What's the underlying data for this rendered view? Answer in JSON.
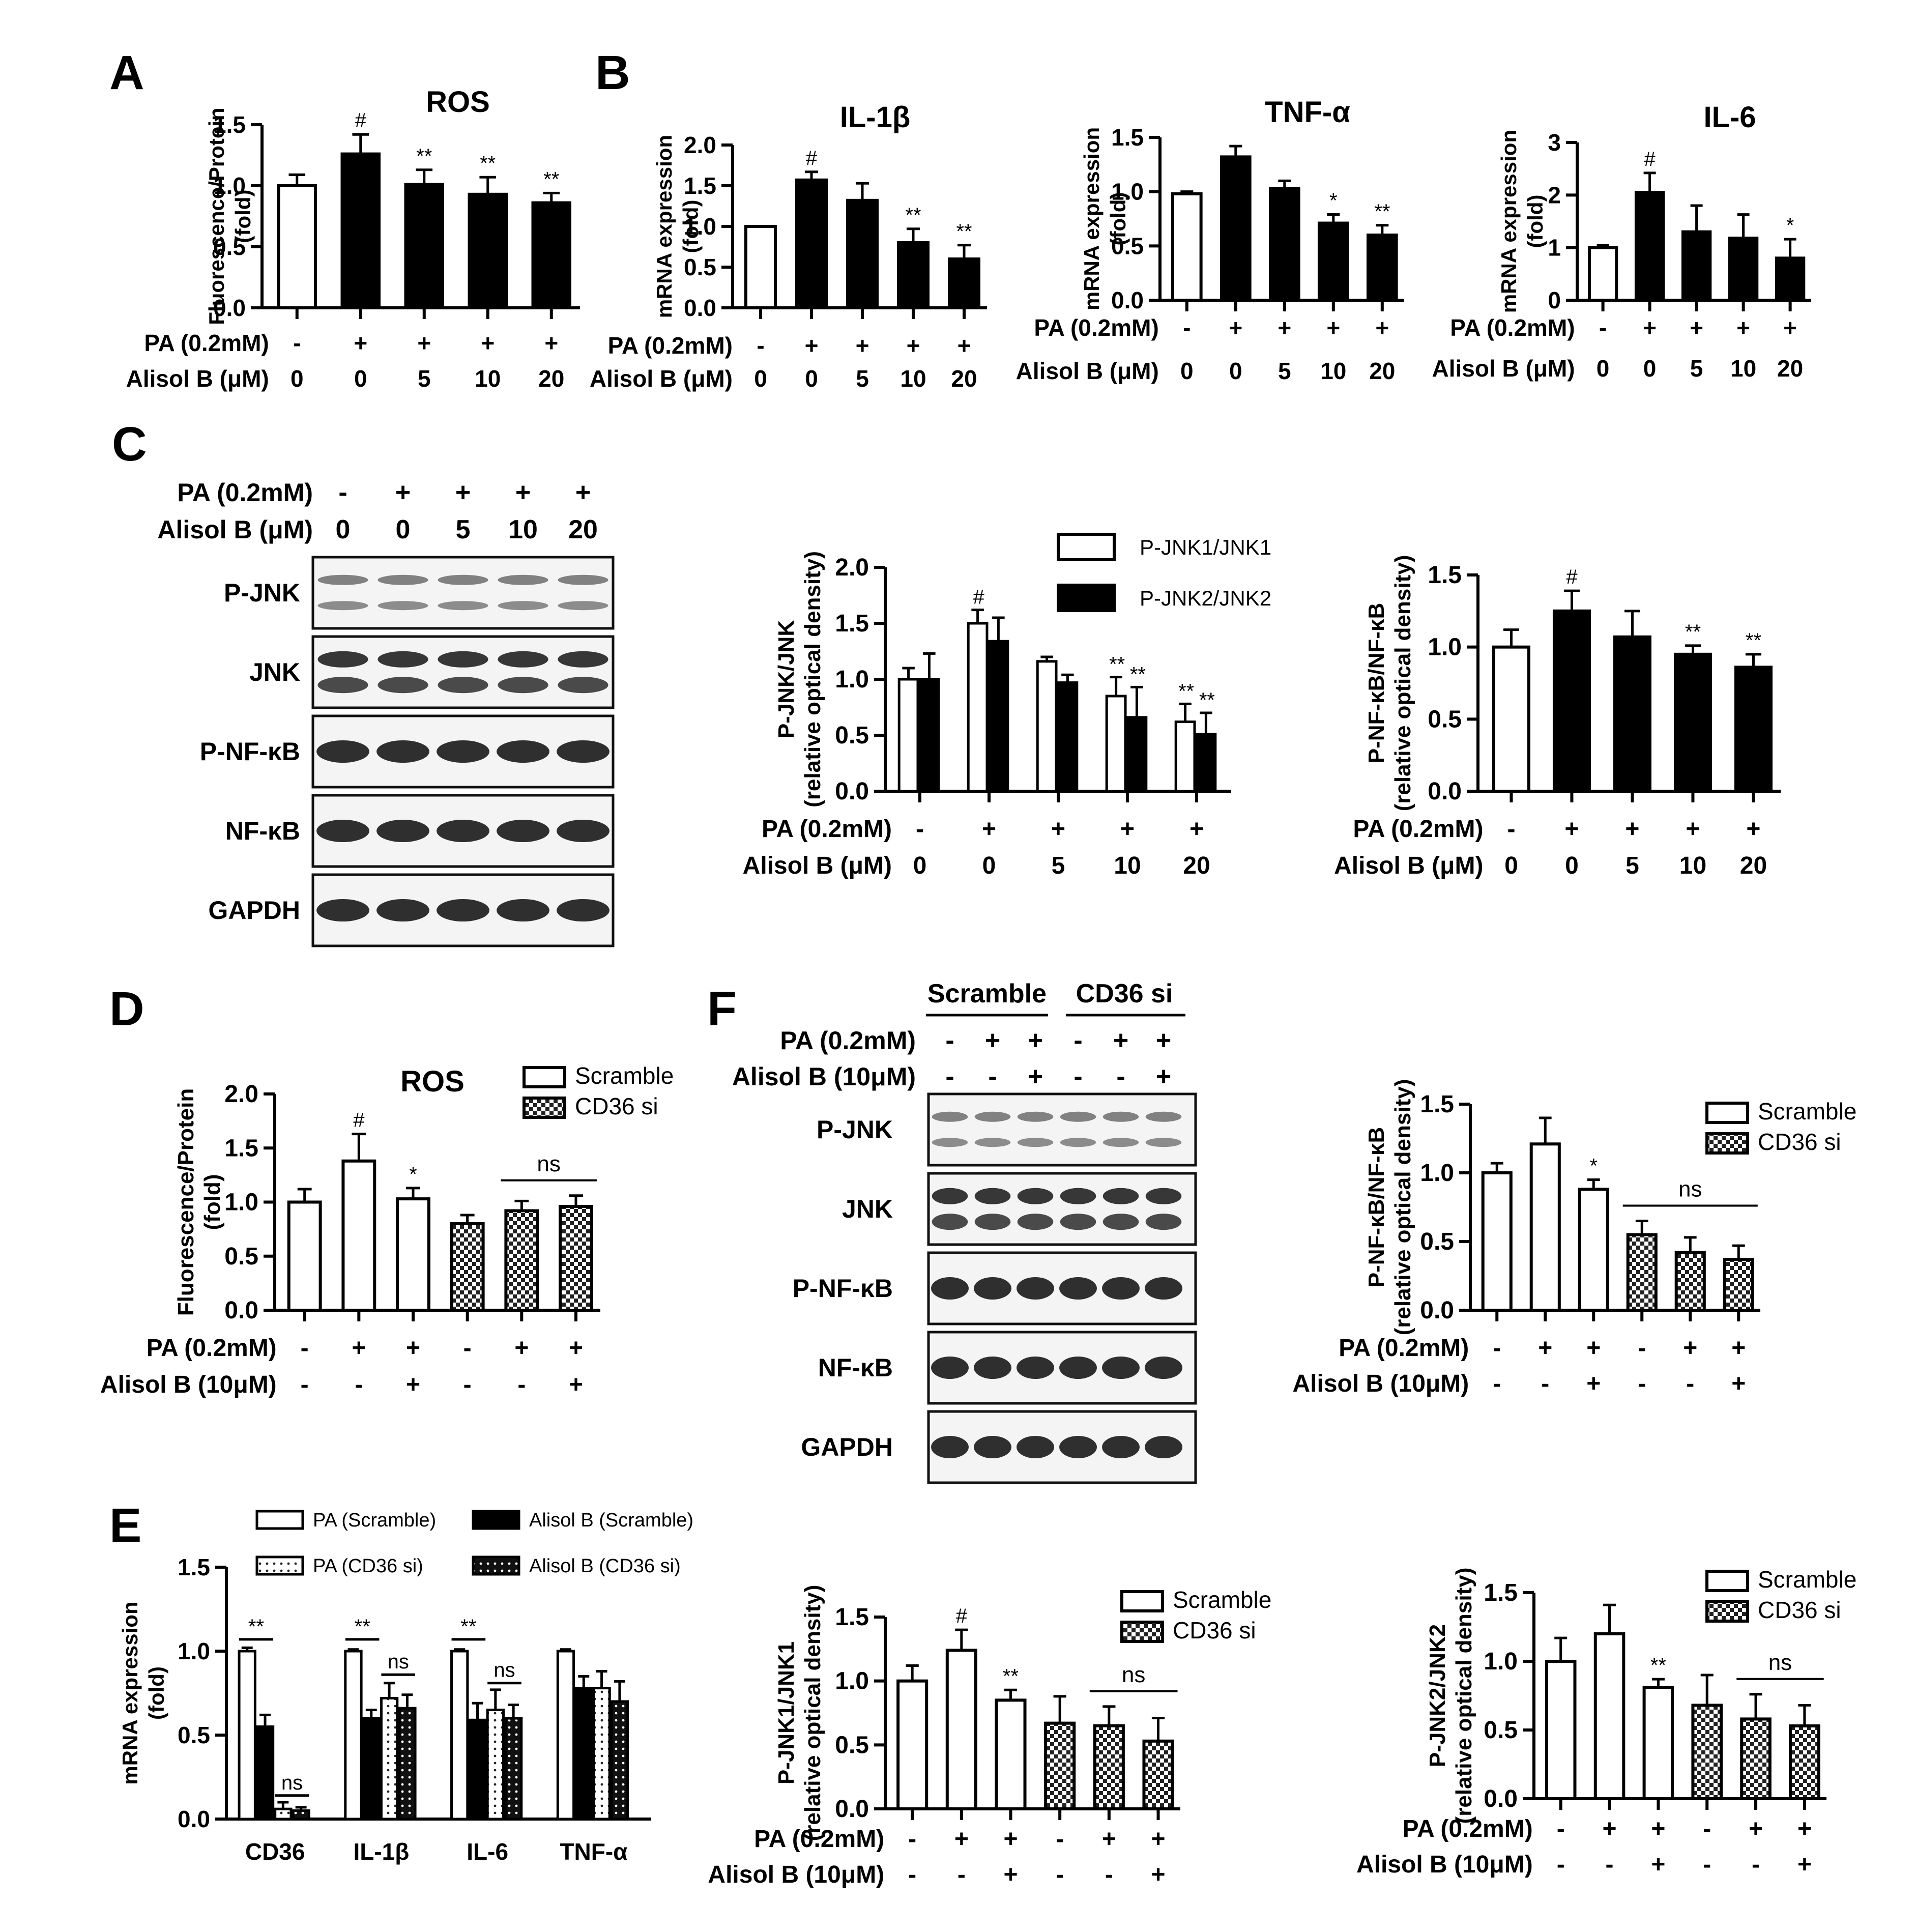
{
  "labels": {
    "pa": "PA (0.2mM)",
    "pa10": "PA (0.2mM)",
    "alisol": "Alisol B (μM)",
    "alisol10": "Alisol B (10μM)",
    "fold": "(fold)",
    "mrna": "mRNA expression",
    "fluor": "Fluorescence/Protein",
    "rod": "(relative optical density)",
    "ns": "ns"
  },
  "panel_letters": [
    "A",
    "B",
    "C",
    "D",
    "E",
    "F"
  ],
  "panelC": {
    "pa_signs": [
      "-",
      "+",
      "+",
      "+",
      "+"
    ],
    "alisol_doses": [
      "0",
      "0",
      "5",
      "10",
      "20"
    ],
    "blots": [
      "P-JNK",
      "JNK",
      "P-NF-κB",
      "NF-κB",
      "GAPDH"
    ]
  },
  "panelF": {
    "groups": [
      "Scramble",
      "CD36 si"
    ],
    "pa_signs": [
      "-",
      "+",
      "+",
      "-",
      "+",
      "+"
    ],
    "alisol_signs": [
      "-",
      "-",
      "+",
      "-",
      "-",
      "+"
    ],
    "blots": [
      "P-JNK",
      "JNK",
      "P-NF-κB",
      "NF-κB",
      "GAPDH"
    ]
  },
  "colors": {
    "filled": "#000000",
    "open": "#ffffff",
    "axis": "#000000"
  },
  "chart_data": [
    {
      "id": "A",
      "type": "bar",
      "title": "ROS",
      "ylabel": [
        "Fluorescence/Protein",
        "(fold)"
      ],
      "ylim": [
        0,
        1.5
      ],
      "yticks": [
        "0.0",
        "0.5",
        "1.0",
        "1.5"
      ],
      "row1_label": "PA (0.2mM)",
      "row1": [
        "-",
        "+",
        "+",
        "+",
        "+"
      ],
      "row2_label": "Alisol B (μM)",
      "row2": [
        "0",
        "0",
        "5",
        "10",
        "20"
      ],
      "values": [
        1.0,
        1.26,
        1.01,
        0.93,
        0.86
      ],
      "errors": [
        0.09,
        0.16,
        0.12,
        0.14,
        0.08
      ],
      "fills": [
        "open",
        "filled",
        "filled",
        "filled",
        "filled"
      ],
      "marks": [
        "",
        "#",
        "**",
        "**",
        "**"
      ]
    },
    {
      "id": "B1",
      "type": "bar",
      "title": "IL-1β",
      "ylabel": [
        "mRNA expression",
        "(fold)"
      ],
      "ylim": [
        0,
        2.0
      ],
      "yticks": [
        "0.0",
        "0.5",
        "1.0",
        "1.5",
        "2.0"
      ],
      "row1_label": "PA (0.2mM)",
      "row1": [
        "-",
        "+",
        "+",
        "+",
        "+"
      ],
      "row2_label": "Alisol B (μM)",
      "row2": [
        "0",
        "0",
        "5",
        "10",
        "20"
      ],
      "values": [
        1.0,
        1.57,
        1.32,
        0.8,
        0.6
      ],
      "errors": [
        0.0,
        0.1,
        0.21,
        0.17,
        0.17
      ],
      "fills": [
        "open",
        "filled",
        "filled",
        "filled",
        "filled"
      ],
      "marks": [
        "",
        "#",
        "",
        "**",
        "**"
      ]
    },
    {
      "id": "B2",
      "type": "bar",
      "title": "TNF-α",
      "ylabel": [
        "mRNA expression",
        "(fold)"
      ],
      "ylim": [
        0,
        1.5
      ],
      "yticks": [
        "0.0",
        "0.5",
        "1.0",
        "1.5"
      ],
      "row1_label": "PA (0.2mM)",
      "row1": [
        "-",
        "+",
        "+",
        "+",
        "+"
      ],
      "row2_label": "Alisol B (μM)",
      "row2": [
        "0",
        "0",
        "5",
        "10",
        "20"
      ],
      "values": [
        0.98,
        1.32,
        1.03,
        0.71,
        0.6
      ],
      "errors": [
        0.02,
        0.1,
        0.07,
        0.08,
        0.09
      ],
      "fills": [
        "open",
        "filled",
        "filled",
        "filled",
        "filled"
      ],
      "marks": [
        "",
        "",
        "",
        "*",
        "**"
      ]
    },
    {
      "id": "B3",
      "type": "bar",
      "title": "IL-6",
      "ylabel": [
        "mRNA expression",
        "(fold)"
      ],
      "ylim": [
        0,
        3
      ],
      "yticks": [
        "0",
        "1",
        "2",
        "3"
      ],
      "row1_label": "PA (0.2mM)",
      "row1": [
        "-",
        "+",
        "+",
        "+",
        "+"
      ],
      "row2_label": "Alisol B (μM)",
      "row2": [
        "0",
        "0",
        "5",
        "10",
        "20"
      ],
      "values": [
        1.0,
        2.05,
        1.3,
        1.18,
        0.8
      ],
      "errors": [
        0.04,
        0.37,
        0.5,
        0.45,
        0.36
      ],
      "fills": [
        "open",
        "filled",
        "filled",
        "filled",
        "filled"
      ],
      "marks": [
        "",
        "#",
        "",
        "",
        "*"
      ]
    },
    {
      "id": "C2",
      "type": "bar",
      "title": "",
      "ylabel": [
        "P-JNK/JNK",
        "(relative optical density)"
      ],
      "ylim": [
        0,
        2.0
      ],
      "yticks": [
        "0.0",
        "0.5",
        "1.0",
        "1.5",
        "2.0"
      ],
      "row1_label": "PA (0.2mM)",
      "row1": [
        "-",
        "+",
        "+",
        "+",
        "+"
      ],
      "row2_label": "Alisol B (μM)",
      "row2": [
        "0",
        "0",
        "5",
        "10",
        "20"
      ],
      "series": [
        {
          "name": "P-JNK1/JNK1",
          "fill": "open",
          "values": [
            1.0,
            1.5,
            1.16,
            0.85,
            0.62
          ],
          "errors": [
            0.1,
            0.12,
            0.04,
            0.17,
            0.16
          ],
          "marks": [
            "",
            "#",
            "",
            "**",
            "**"
          ]
        },
        {
          "name": "P-JNK2/JNK2",
          "fill": "filled",
          "values": [
            1.0,
            1.34,
            0.97,
            0.66,
            0.51
          ],
          "errors": [
            0.23,
            0.21,
            0.07,
            0.27,
            0.19
          ],
          "marks": [
            "",
            "",
            "",
            "**",
            "**"
          ]
        }
      ],
      "legend": "top-right"
    },
    {
      "id": "C3",
      "type": "bar",
      "title": "",
      "ylabel": [
        "P-NF-κB/NF-κB",
        "(relative optical density)"
      ],
      "ylim": [
        0,
        1.5
      ],
      "yticks": [
        "0.0",
        "0.5",
        "1.0",
        "1.5"
      ],
      "row1_label": "PA (0.2mM)",
      "row1": [
        "-",
        "+",
        "+",
        "+",
        "+"
      ],
      "row2_label": "Alisol B (μM)",
      "row2": [
        "0",
        "0",
        "5",
        "10",
        "20"
      ],
      "values": [
        1.0,
        1.25,
        1.07,
        0.95,
        0.86
      ],
      "errors": [
        0.12,
        0.14,
        0.18,
        0.06,
        0.09
      ],
      "fills": [
        "open",
        "filled",
        "filled",
        "filled",
        "filled"
      ],
      "marks": [
        "",
        "#",
        "",
        "**",
        "**"
      ]
    },
    {
      "id": "D",
      "type": "bar",
      "title": "ROS",
      "ylabel": [
        "Fluorescence/Protein",
        "(fold)"
      ],
      "ylim": [
        0,
        2.0
      ],
      "yticks": [
        "0.0",
        "0.5",
        "1.0",
        "1.5",
        "2.0"
      ],
      "row1_label": "PA (0.2mM)",
      "row1": [
        "-",
        "+",
        "+",
        "-",
        "+",
        "+"
      ],
      "row2_label": "Alisol B (10μM)",
      "row2": [
        "-",
        "-",
        "+",
        "-",
        "-",
        "+"
      ],
      "values": [
        1.0,
        1.38,
        1.03,
        0.8,
        0.92,
        0.96
      ],
      "errors": [
        0.12,
        0.25,
        0.1,
        0.08,
        0.09,
        0.1
      ],
      "fills": [
        "open",
        "open",
        "open",
        "check",
        "check",
        "check"
      ],
      "marks": [
        "",
        "#",
        "*",
        "",
        "",
        ""
      ],
      "legend_items": [
        {
          "name": "Scramble",
          "fill": "open"
        },
        {
          "name": "CD36 si",
          "fill": "check"
        }
      ],
      "ns_span": [
        4,
        5
      ]
    },
    {
      "id": "E1",
      "type": "bar",
      "title": "",
      "ylabel": [
        "mRNA expression",
        "(fold)"
      ],
      "ylim": [
        0,
        1.5
      ],
      "yticks": [
        "0.0",
        "0.5",
        "1.0",
        "1.5"
      ],
      "categories": [
        "CD36",
        "IL-1β",
        "IL-6",
        "TNF-α"
      ],
      "series": [
        {
          "name": "PA (Scramble)",
          "fill": "open",
          "values": [
            1.0,
            1.0,
            1.0,
            1.0
          ],
          "errors": [
            0.02,
            0.01,
            0.01,
            0.01
          ]
        },
        {
          "name": "Alisol B (Scramble)",
          "fill": "filled",
          "values": [
            0.55,
            0.6,
            0.59,
            0.78
          ],
          "errors": [
            0.07,
            0.05,
            0.1,
            0.07
          ]
        },
        {
          "name": "PA (CD36 si)",
          "fill": "dots",
          "values": [
            0.06,
            0.72,
            0.65,
            0.78
          ],
          "errors": [
            0.04,
            0.09,
            0.12,
            0.1
          ]
        },
        {
          "name": "Alisol B (CD36 si)",
          "fill": "dotsdark",
          "values": [
            0.05,
            0.66,
            0.6,
            0.7
          ],
          "errors": [
            0.02,
            0.08,
            0.08,
            0.12
          ]
        }
      ],
      "annotations": [
        "**",
        "**",
        "**",
        "ns",
        "ns",
        "ns"
      ],
      "legend": "top"
    },
    {
      "id": "E2",
      "type": "bar",
      "title": "",
      "ylabel": [
        "P-JNK1/JNK1",
        "(relative optical density)"
      ],
      "ylim": [
        0,
        1.5
      ],
      "yticks": [
        "0.0",
        "0.5",
        "1.0",
        "1.5"
      ],
      "row1_label": "PA (0.2mM)",
      "row1": [
        "-",
        "+",
        "+",
        "-",
        "+",
        "+"
      ],
      "row2_label": "Alisol B (10μM)",
      "row2": [
        "-",
        "-",
        "+",
        "-",
        "-",
        "+"
      ],
      "values": [
        1.0,
        1.24,
        0.85,
        0.67,
        0.65,
        0.53
      ],
      "errors": [
        0.12,
        0.16,
        0.08,
        0.21,
        0.15,
        0.18
      ],
      "fills": [
        "open",
        "open",
        "open",
        "check",
        "check",
        "check"
      ],
      "marks": [
        "",
        "#",
        "**",
        "",
        "",
        ""
      ],
      "legend_items": [
        {
          "name": "Scramble",
          "fill": "open"
        },
        {
          "name": "CD36 si",
          "fill": "check"
        }
      ],
      "ns_span": [
        4,
        5
      ]
    },
    {
      "id": "E3",
      "type": "bar",
      "title": "",
      "ylabel": [
        "P-JNK2/JNK2",
        "(relative optical density)"
      ],
      "ylim": [
        0,
        1.5
      ],
      "yticks": [
        "0.0",
        "0.5",
        "1.0",
        "1.5"
      ],
      "row1_label": "PA (0.2mM)",
      "row1": [
        "-",
        "+",
        "+",
        "-",
        "+",
        "+"
      ],
      "row2_label": "Alisol B (10μM)",
      "row2": [
        "-",
        "-",
        "+",
        "-",
        "-",
        "+"
      ],
      "values": [
        1.0,
        1.2,
        0.81,
        0.68,
        0.58,
        0.53
      ],
      "errors": [
        0.17,
        0.21,
        0.06,
        0.22,
        0.18,
        0.15
      ],
      "fills": [
        "open",
        "open",
        "open",
        "check",
        "check",
        "check"
      ],
      "marks": [
        "",
        "",
        "**",
        "",
        "",
        ""
      ],
      "legend_items": [
        {
          "name": "Scramble",
          "fill": "open"
        },
        {
          "name": "CD36 si",
          "fill": "check"
        }
      ],
      "ns_span": [
        4,
        5
      ]
    },
    {
      "id": "F2",
      "type": "bar",
      "title": "",
      "ylabel": [
        "P-NF-κB/NF-κB",
        "(relative optical density)"
      ],
      "ylim": [
        0,
        1.5
      ],
      "yticks": [
        "0.0",
        "0.5",
        "1.0",
        "1.5"
      ],
      "row1_label": "PA (0.2mM)",
      "row1": [
        "-",
        "+",
        "+",
        "-",
        "+",
        "+"
      ],
      "row2_label": "Alisol B (10μM)",
      "row2": [
        "-",
        "-",
        "+",
        "-",
        "-",
        "+"
      ],
      "values": [
        1.0,
        1.21,
        0.88,
        0.55,
        0.42,
        0.37
      ],
      "errors": [
        0.07,
        0.19,
        0.07,
        0.1,
        0.11,
        0.1
      ],
      "fills": [
        "open",
        "open",
        "open",
        "check",
        "check",
        "check"
      ],
      "marks": [
        "",
        "",
        "*",
        "",
        "",
        ""
      ],
      "legend_items": [
        {
          "name": "Scramble",
          "fill": "open"
        },
        {
          "name": "CD36 si",
          "fill": "check"
        }
      ],
      "ns_span": [
        3,
        5
      ]
    }
  ]
}
